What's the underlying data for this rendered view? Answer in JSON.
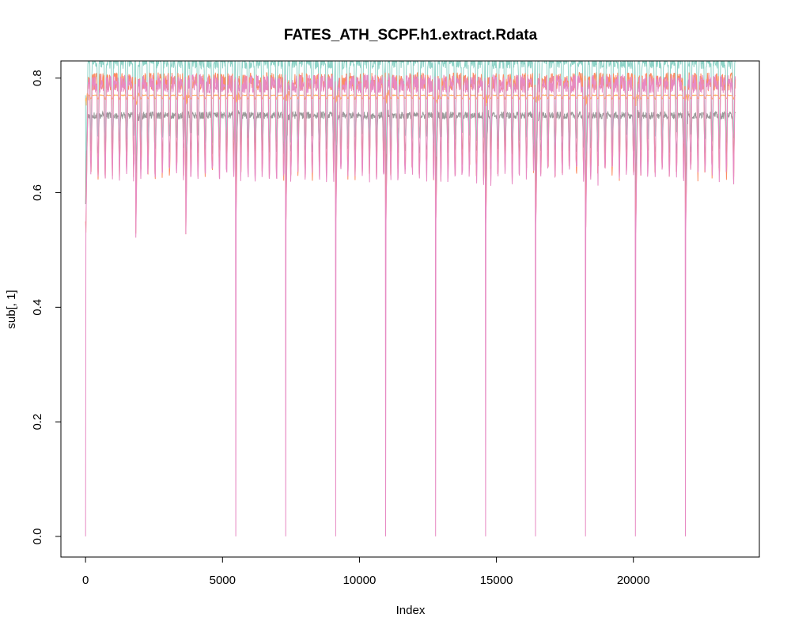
{
  "chart_data": {
    "type": "line",
    "title": "FATES_ATH_SCPF.h1.extract.Rdata",
    "xlabel": "Index",
    "ylabel": "sub[, 1]",
    "xlim": [
      -900,
      24600
    ],
    "ylim": [
      -0.036,
      0.83
    ],
    "xticks": [
      0,
      5000,
      10000,
      15000,
      20000
    ],
    "xtick_labels": [
      "0",
      "5000",
      "10000",
      "15000",
      "20000"
    ],
    "yticks": [
      0.0,
      0.2,
      0.4,
      0.6,
      0.8
    ],
    "ytick_labels": [
      "0.0",
      "0.2",
      "0.4",
      "0.6",
      "0.8"
    ],
    "n_points": 23725,
    "cycle_length": 1825,
    "cycle_start_index": 0,
    "grid": false,
    "legend": "none",
    "series": [
      {
        "color": "#8DD3C7",
        "baseline": 0.83,
        "dip_min": 0.6,
        "spike_min": 0.77
      },
      {
        "color": "#E78AC3",
        "baseline": 0.79,
        "dip_min": 0.52,
        "spike_min": 0.0
      },
      {
        "color": "#FC8D62",
        "baseline": 0.794,
        "dip_min": 0.53,
        "spike_min": 0.55
      },
      {
        "color": "#FDB462",
        "baseline": 0.77,
        "dip_min": 0.76,
        "spike_min": 0.76
      },
      {
        "color": "#999999",
        "baseline": 0.735,
        "dip_min": 0.63,
        "spike_min": 0.58
      }
    ]
  }
}
